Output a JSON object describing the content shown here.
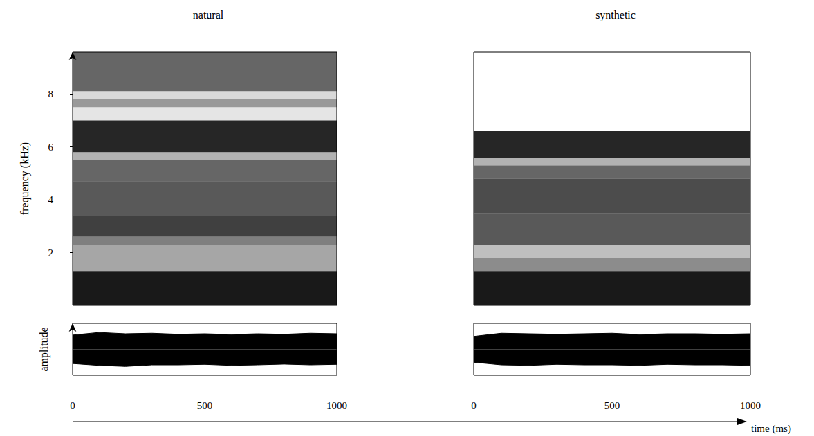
{
  "chart_data": {
    "type": "spectrogram",
    "x_label": "time (ms)",
    "y_label": "frequency (kHz)",
    "amplitude_label": "amplitude",
    "xlim": [
      0,
      1000
    ],
    "xticks": [
      0,
      500,
      1000
    ],
    "ylim": [
      0,
      9.6
    ],
    "yticks": [
      2,
      4,
      6,
      8
    ],
    "amplitude_lim": [
      -1,
      1
    ],
    "grid": false,
    "panels": [
      {
        "title": "natural",
        "bands": [
          [
            0,
            1.3,
            0.9
          ],
          [
            1.3,
            2.3,
            0.35
          ],
          [
            2.3,
            2.6,
            0.5
          ],
          [
            2.6,
            3.4,
            0.75
          ],
          [
            3.4,
            4.7,
            0.65
          ],
          [
            4.7,
            5.5,
            0.6
          ],
          [
            5.5,
            5.8,
            0.3
          ],
          [
            5.8,
            7.0,
            0.85
          ],
          [
            7.0,
            7.5,
            0.1
          ],
          [
            7.5,
            7.8,
            0.4
          ],
          [
            7.8,
            8.1,
            0.15
          ],
          [
            8.1,
            9.6,
            0.6
          ]
        ],
        "amplitude": {
          "t": [
            0,
            100,
            200,
            300,
            400,
            500,
            600,
            700,
            800,
            900,
            1000
          ],
          "upper": [
            0.55,
            0.65,
            0.6,
            0.62,
            0.58,
            0.6,
            0.57,
            0.6,
            0.58,
            0.62,
            0.6
          ],
          "lower": [
            -0.55,
            -0.62,
            -0.66,
            -0.6,
            -0.6,
            -0.58,
            -0.62,
            -0.6,
            -0.57,
            -0.6,
            -0.58
          ]
        }
      },
      {
        "title": "synthetic",
        "bands": [
          [
            0,
            1.3,
            0.9
          ],
          [
            1.3,
            1.8,
            0.45
          ],
          [
            1.8,
            2.3,
            0.25
          ],
          [
            2.3,
            3.5,
            0.65
          ],
          [
            3.5,
            4.8,
            0.7
          ],
          [
            4.8,
            5.3,
            0.6
          ],
          [
            5.3,
            5.6,
            0.3
          ],
          [
            5.6,
            6.6,
            0.85
          ]
        ],
        "amplitude": {
          "t": [
            0,
            100,
            200,
            300,
            400,
            500,
            600,
            700,
            800,
            900,
            1000
          ],
          "upper": [
            0.5,
            0.62,
            0.6,
            0.58,
            0.6,
            0.62,
            0.57,
            0.6,
            0.6,
            0.58,
            0.6
          ],
          "lower": [
            -0.5,
            -0.6,
            -0.62,
            -0.58,
            -0.6,
            -0.6,
            -0.62,
            -0.58,
            -0.6,
            -0.6,
            -0.62
          ]
        }
      }
    ]
  }
}
